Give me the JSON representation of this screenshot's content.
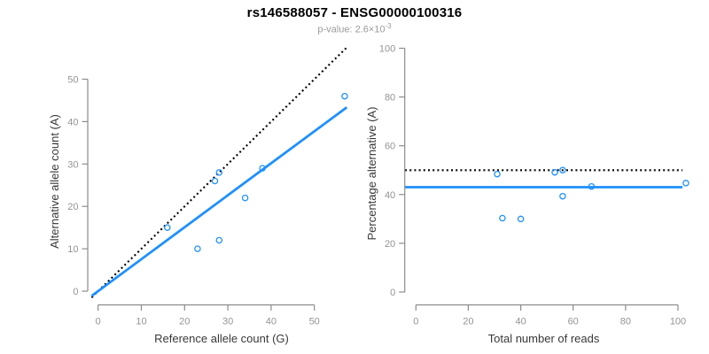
{
  "header": {
    "title": "rs146588057 - ENSG00000100316",
    "subtitle_label": "p-value: ",
    "subtitle_value": "2.6×10",
    "subtitle_exponent": "-3"
  },
  "colors": {
    "accent_blue": "#1E90FF",
    "axis_gray": "#8c8c8c",
    "tick_text_gray": "#949494",
    "axis_title_dark": "#383838",
    "reference_line_black": "#000000"
  },
  "chart_data": [
    {
      "type": "scatter",
      "name": "allele-count-plot",
      "xlabel": "Reference allele count (G)",
      "ylabel": "Alternative allele count (A)",
      "xticks": [
        0,
        10,
        20,
        30,
        40,
        50
      ],
      "yticks": [
        0,
        10,
        20,
        30,
        40,
        50
      ],
      "xlim": [
        0,
        57
      ],
      "ylim": [
        0,
        57
      ],
      "point_color": "#1E90FF",
      "points": [
        [
          16,
          15
        ],
        [
          23,
          10
        ],
        [
          27,
          26
        ],
        [
          28,
          12
        ],
        [
          28,
          28
        ],
        [
          34,
          22
        ],
        [
          38,
          29
        ],
        [
          57,
          46
        ]
      ],
      "lines": [
        {
          "name": "identity-line",
          "slope": 1,
          "intercept": 0,
          "style": "dotted",
          "color": "#000000"
        },
        {
          "name": "fit-line",
          "slope": 0.754,
          "intercept": 0,
          "style": "solid",
          "color": "#1E90FF"
        }
      ]
    },
    {
      "type": "scatter",
      "name": "percentage-plot",
      "xlabel": "Total number of reads",
      "ylabel": "Percentage alternative (A)",
      "xticks": [
        0,
        20,
        40,
        60,
        80,
        100
      ],
      "yticks": [
        0,
        20,
        40,
        60,
        80,
        100
      ],
      "xlim": [
        0,
        103
      ],
      "ylim": [
        0,
        100
      ],
      "point_color": "#1E90FF",
      "points": [
        [
          31,
          48.4
        ],
        [
          33,
          30.3
        ],
        [
          40,
          30
        ],
        [
          53,
          49.1
        ],
        [
          56,
          39.3
        ],
        [
          56,
          50
        ],
        [
          67,
          43.3
        ],
        [
          103,
          44.7
        ]
      ],
      "hlines": [
        {
          "name": "expected-50pct-line",
          "y": 50,
          "style": "dotted",
          "color": "#000000"
        },
        {
          "name": "observed-pct-line",
          "y": 43,
          "style": "solid",
          "color": "#1E90FF"
        }
      ]
    }
  ]
}
